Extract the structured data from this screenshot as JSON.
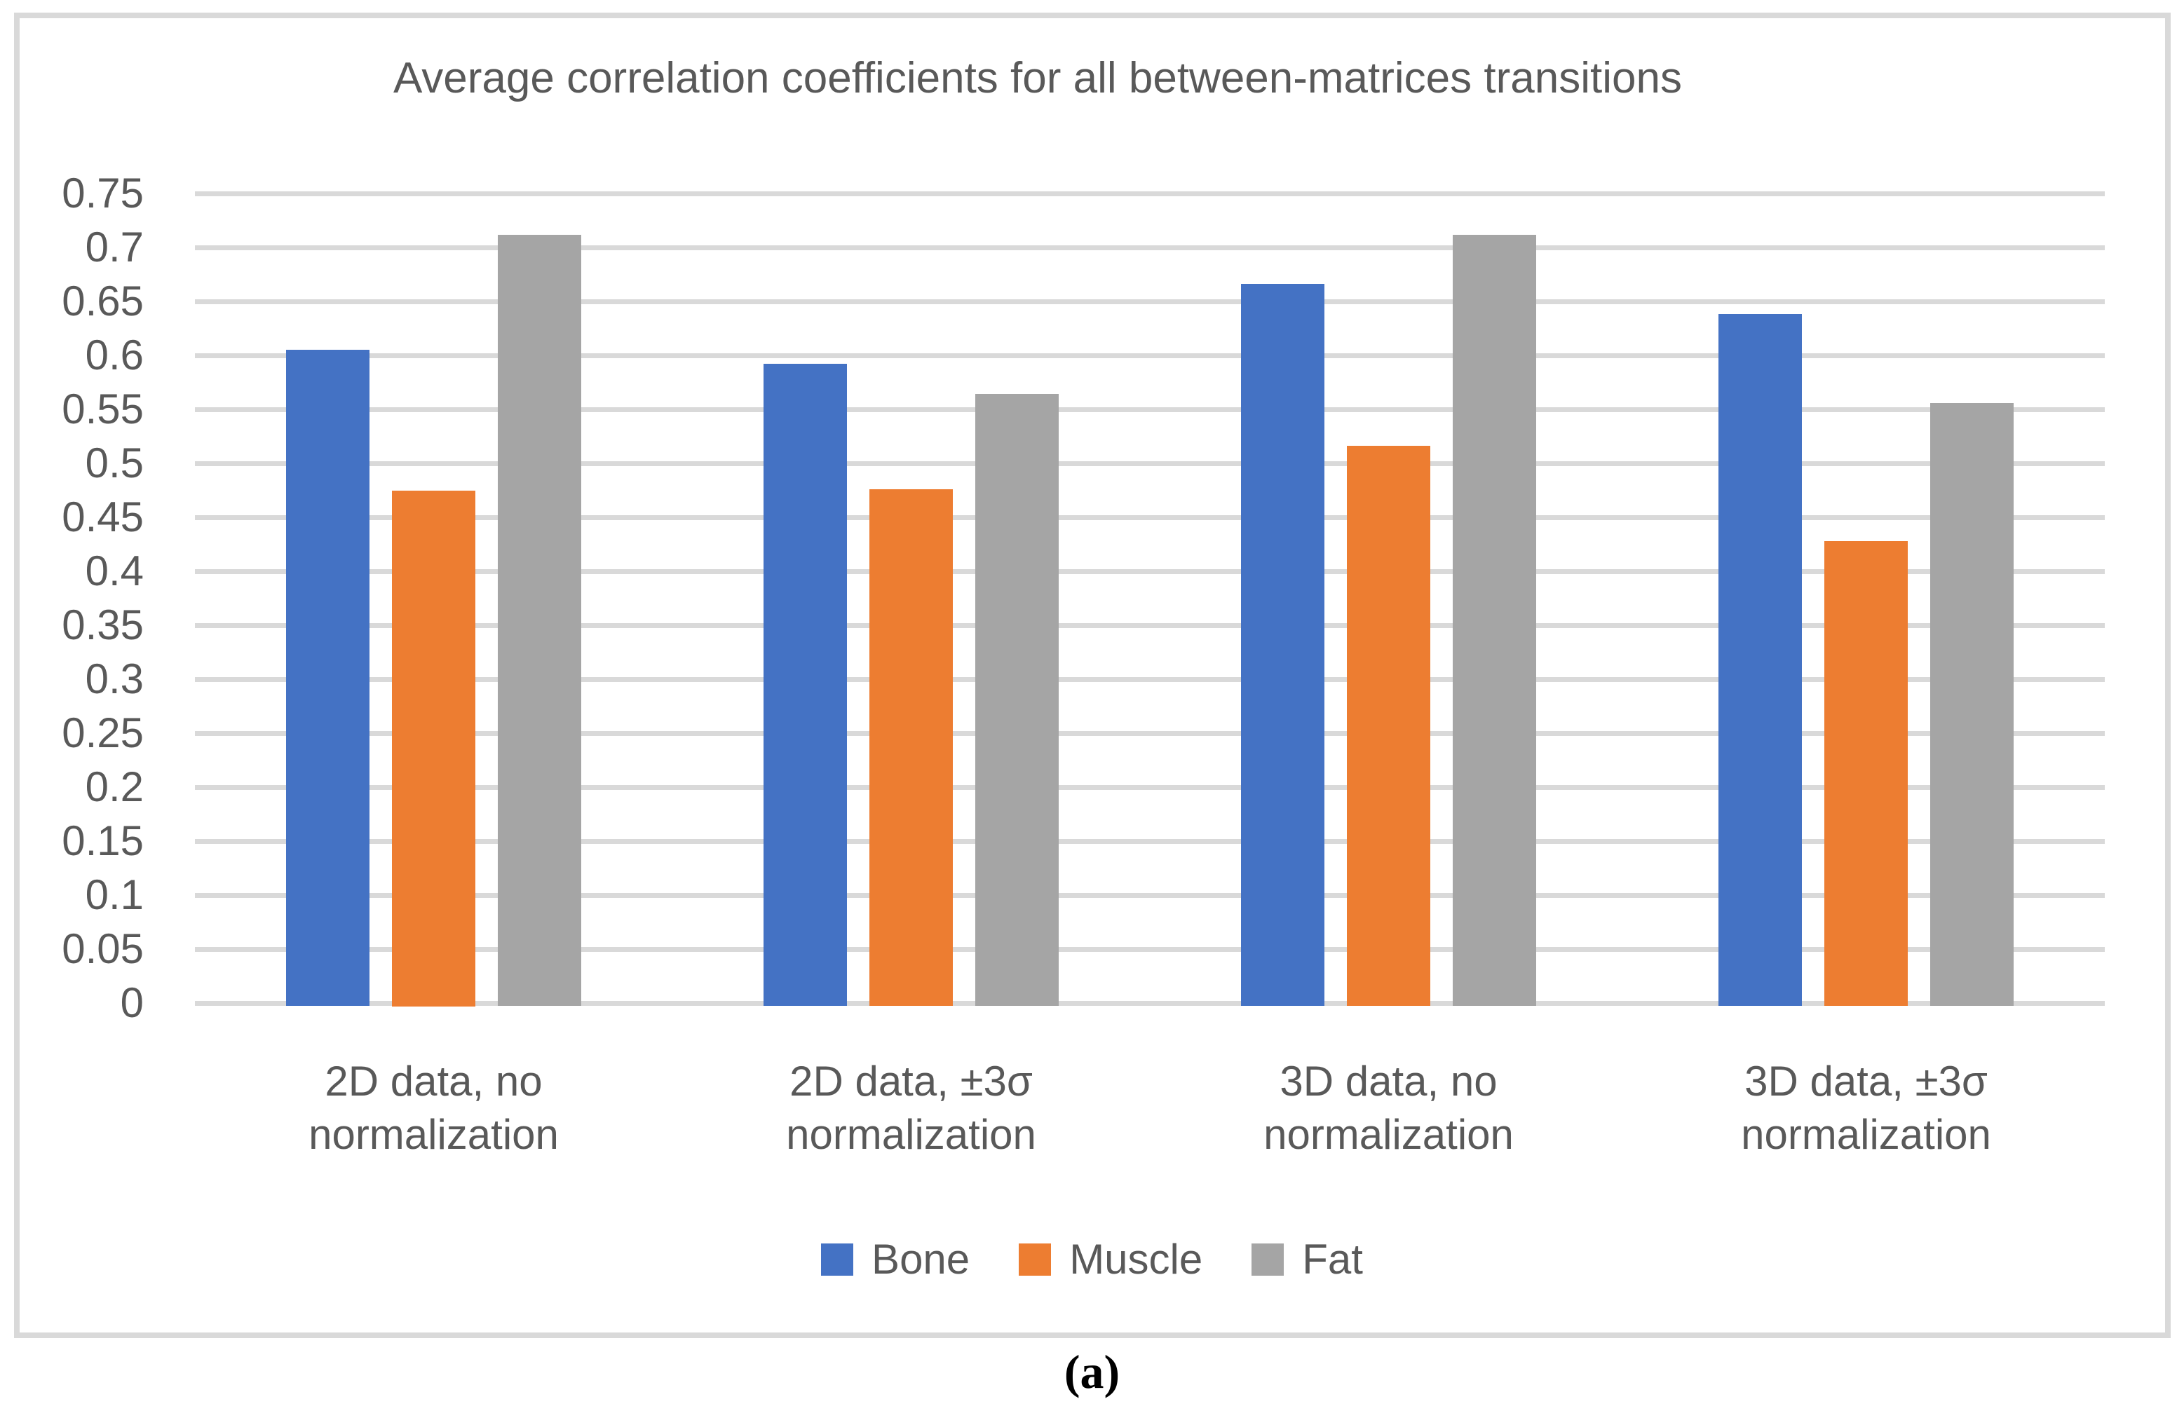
{
  "figure": {
    "caption": "(a)"
  },
  "colors": {
    "background": "#FFFFFF",
    "frame": "#D9D9D9",
    "grid": "#D9D9D9",
    "text": "#595959",
    "caption": "#000000",
    "bone": "#4472C4",
    "muscle": "#ED7D31",
    "fat": "#A5A5A5"
  },
  "chart_data": {
    "type": "bar",
    "title": "Average correlation coefficients for all between-matrices transitions",
    "categories": [
      "2D data, no normalization",
      "2D data, ±3σ normalization",
      "3D data, no normalization",
      "3D data, ±3σ normalization"
    ],
    "series": [
      {
        "name": "Bone",
        "color": "#4472C4",
        "values": [
          0.605,
          0.592,
          0.666,
          0.638
        ]
      },
      {
        "name": "Muscle",
        "color": "#ED7D31",
        "values": [
          0.475,
          0.476,
          0.516,
          0.428
        ]
      },
      {
        "name": "Fat",
        "color": "#A5A5A5",
        "values": [
          0.712,
          0.564,
          0.712,
          0.556
        ]
      }
    ],
    "xlabel": "",
    "ylabel": "",
    "ylim": [
      0,
      0.75
    ],
    "grid": true,
    "legend_position": "bottom",
    "yticks": [
      {
        "value": 0,
        "label": "0"
      },
      {
        "value": 0.05,
        "label": "0.05"
      },
      {
        "value": 0.1,
        "label": "0.1"
      },
      {
        "value": 0.15,
        "label": "0.15"
      },
      {
        "value": 0.2,
        "label": "0.2"
      },
      {
        "value": 0.25,
        "label": "0.25"
      },
      {
        "value": 0.3,
        "label": "0.3"
      },
      {
        "value": 0.35,
        "label": "0.35"
      },
      {
        "value": 0.4,
        "label": "0.4"
      },
      {
        "value": 0.45,
        "label": "0.45"
      },
      {
        "value": 0.5,
        "label": "0.5"
      },
      {
        "value": 0.55,
        "label": "0.55"
      },
      {
        "value": 0.6,
        "label": "0.6"
      },
      {
        "value": 0.65,
        "label": "0.65"
      },
      {
        "value": 0.7,
        "label": "0.7"
      },
      {
        "value": 0.75,
        "label": "0.75"
      }
    ]
  }
}
